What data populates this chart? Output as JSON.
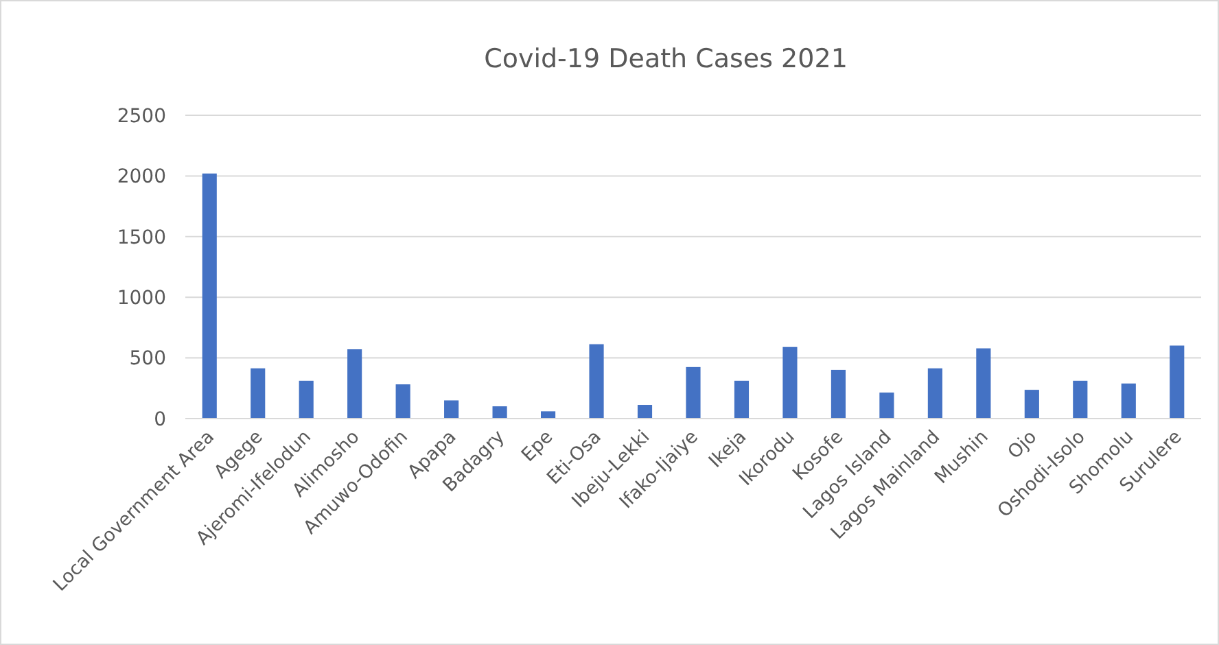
{
  "chart_data": {
    "type": "bar",
    "title": "Covid-19 Death Cases 2021",
    "categories": [
      "Local Government Area",
      "Agege",
      "Ajeromi-Ifelodun",
      "Alimosho",
      "Amuwo-Odofin",
      "Apapa",
      "Badagry",
      "Epe",
      "Eti-Osa",
      "Ibeju-Lekki",
      "Ifako-Ijaiye",
      "Ikeja",
      "Ikorodu",
      "Kosofe",
      "Lagos Island",
      "Lagos Mainland",
      "Mushin",
      "Ojo",
      "Oshodi-Isolo",
      "Shomolu",
      "Surulere"
    ],
    "values": [
      2020,
      414,
      312,
      571,
      282,
      150,
      101,
      60,
      613,
      113,
      425,
      312,
      590,
      402,
      214,
      414,
      579,
      237,
      312,
      289,
      602
    ],
    "color": "#4472c4",
    "ylim": [
      0,
      2500
    ],
    "yticks": [
      0,
      500,
      1000,
      1500,
      2000,
      2500
    ],
    "grid": "y"
  }
}
